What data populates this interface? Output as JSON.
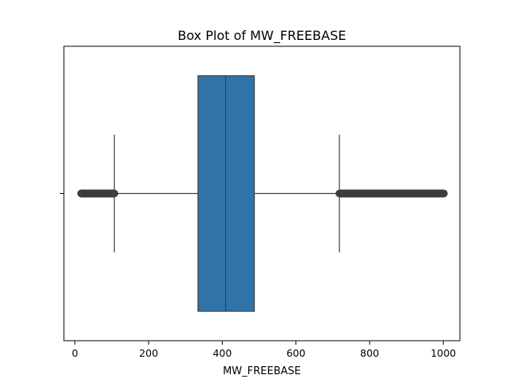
{
  "chart_data": {
    "type": "box",
    "title": "Box Plot of MW_FREEBASE",
    "xlabel": "MW_FREEBASE",
    "ylabel": "",
    "orientation": "horizontal",
    "xlim": [
      -30,
      1045
    ],
    "xticks": [
      0,
      200,
      400,
      600,
      800,
      1000
    ],
    "xtick_labels": [
      "0",
      "200",
      "400",
      "600",
      "800",
      "1000"
    ],
    "yticks": [
      ""
    ],
    "grid": false,
    "legend": "none",
    "colors": {
      "box_fill": "#2f73a9",
      "box_edge": "#3f3f3f",
      "outlier": "#3d3d3d",
      "axes": "#000000",
      "background": "#ffffff"
    },
    "boxes": [
      {
        "category": "",
        "whisker_low": 107,
        "q1": 334,
        "median": 409,
        "q3": 487,
        "whisker_high": 718,
        "outliers": [
          {
            "range": [
              17,
              107
            ],
            "dense": true
          },
          {
            "range": [
              718,
              1002
            ],
            "dense": true
          }
        ]
      }
    ]
  }
}
